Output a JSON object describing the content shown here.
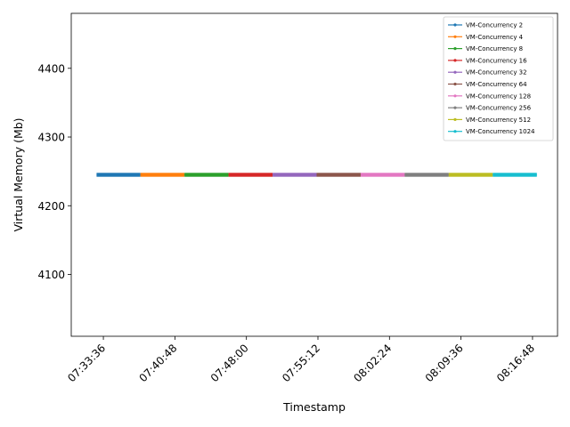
{
  "chart_data": {
    "type": "line",
    "title": "",
    "xlabel": "Timestamp",
    "ylabel": "Virtual Memory (Mb)",
    "x_is_time": true,
    "xlim": [
      "07:30:22",
      "08:19:19"
    ],
    "ylim": [
      4010,
      4480
    ],
    "xticks": [
      "07:33:36",
      "07:40:48",
      "07:48:00",
      "07:55:12",
      "08:02:24",
      "08:09:36",
      "08:16:48"
    ],
    "yticks": [
      4100,
      4200,
      4300,
      4400
    ],
    "grid": false,
    "legend_position": "top-right",
    "series": [
      {
        "name": "VM-Concurrency 2",
        "color": "#1f77b4",
        "x_start": "07:32:55",
        "x_end": "07:37:20",
        "y": 4245
      },
      {
        "name": "VM-Concurrency 4",
        "color": "#ff7f0e",
        "x_start": "07:37:20",
        "x_end": "07:41:46",
        "y": 4245
      },
      {
        "name": "VM-Concurrency 8",
        "color": "#2ca02c",
        "x_start": "07:41:46",
        "x_end": "07:46:12",
        "y": 4245
      },
      {
        "name": "VM-Concurrency 16",
        "color": "#d62728",
        "x_start": "07:46:12",
        "x_end": "07:50:38",
        "y": 4245
      },
      {
        "name": "VM-Concurrency 32",
        "color": "#9467bd",
        "x_start": "07:50:38",
        "x_end": "07:55:04",
        "y": 4245
      },
      {
        "name": "VM-Concurrency 64",
        "color": "#8c564b",
        "x_start": "07:55:04",
        "x_end": "07:59:30",
        "y": 4245
      },
      {
        "name": "VM-Concurrency 128",
        "color": "#e377c2",
        "x_start": "07:59:30",
        "x_end": "08:03:56",
        "y": 4245
      },
      {
        "name": "VM-Concurrency 256",
        "color": "#7f7f7f",
        "x_start": "08:03:56",
        "x_end": "08:08:22",
        "y": 4245
      },
      {
        "name": "VM-Concurrency 512",
        "color": "#bcbd22",
        "x_start": "08:08:22",
        "x_end": "08:12:48",
        "y": 4245
      },
      {
        "name": "VM-Concurrency 1024",
        "color": "#17becf",
        "x_start": "08:12:48",
        "x_end": "08:17:14",
        "y": 4245
      }
    ]
  }
}
